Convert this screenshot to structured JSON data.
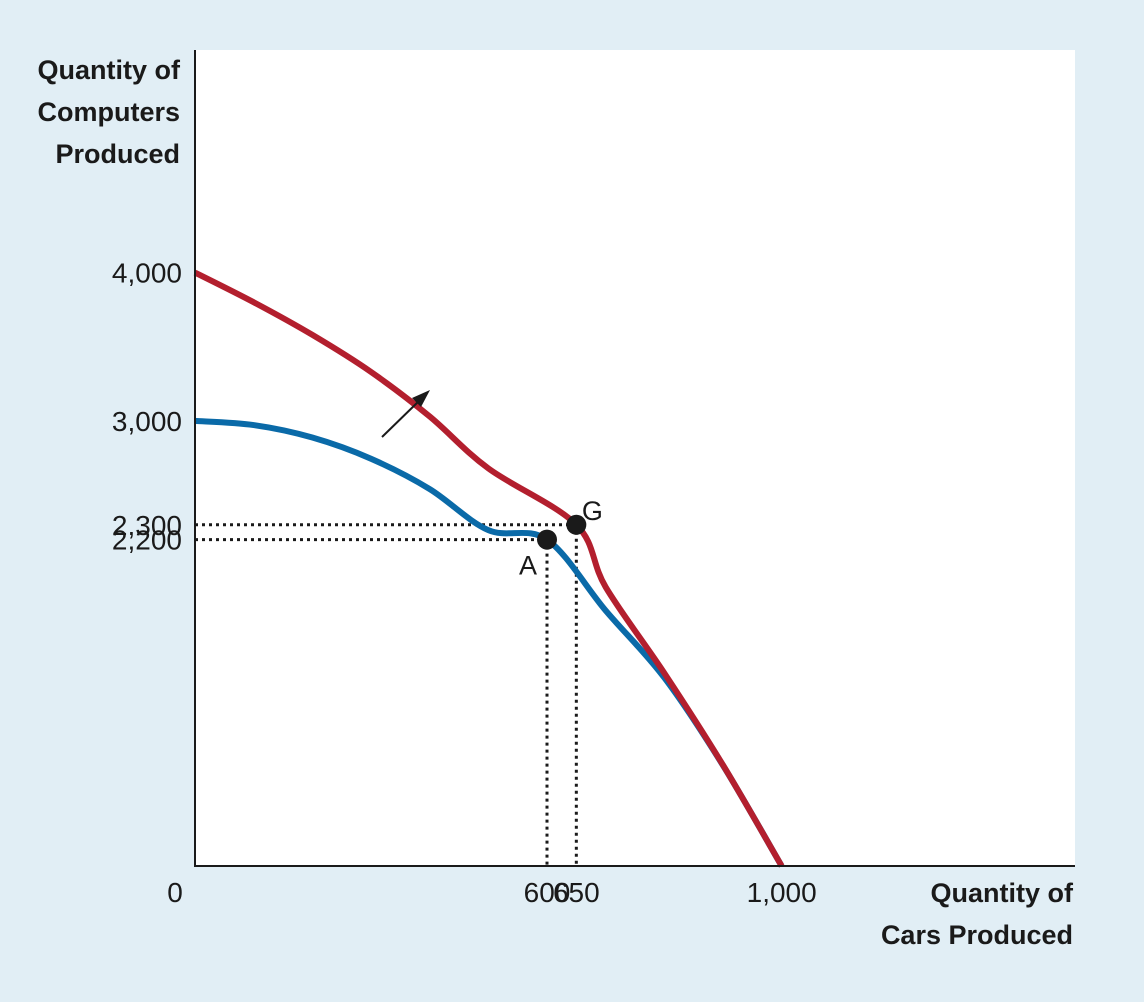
{
  "chart_data": {
    "type": "line",
    "title": "",
    "xlabel": [
      "Quantity of",
      "Cars Produced"
    ],
    "ylabel": [
      "Quantity of",
      "Computers",
      "Produced"
    ],
    "origin_label": "0",
    "xlim": [
      0,
      1500
    ],
    "ylim": [
      0,
      5500
    ],
    "x_ticks": [
      {
        "value": 600,
        "label": "600"
      },
      {
        "value": 650,
        "label": "650"
      },
      {
        "value": 1000,
        "label": "1,000"
      }
    ],
    "y_ticks": [
      {
        "value": 4000,
        "label": "4,000"
      },
      {
        "value": 3000,
        "label": "3,000"
      },
      {
        "value": 2300,
        "label": "2,300"
      },
      {
        "value": 2200,
        "label": "2,200"
      }
    ],
    "grid": false,
    "series": [
      {
        "color": "#0a6aa8",
        "points": [
          [
            0,
            3000
          ],
          [
            100,
            2972
          ],
          [
            200,
            2888
          ],
          [
            300,
            2745
          ],
          [
            400,
            2541
          ],
          [
            500,
            2264
          ],
          [
            600,
            2200
          ],
          [
            700,
            1722
          ],
          [
            800,
            1269
          ],
          [
            900,
            678
          ],
          [
            1000,
            0
          ]
        ]
      },
      {
        "color": "#b31f2e",
        "points": [
          [
            0,
            4000
          ],
          [
            100,
            3800
          ],
          [
            200,
            3580
          ],
          [
            300,
            3330
          ],
          [
            400,
            3030
          ],
          [
            500,
            2680
          ],
          [
            650,
            2300
          ],
          [
            700,
            1880
          ],
          [
            800,
            1300
          ],
          [
            900,
            680
          ],
          [
            1000,
            0
          ]
        ]
      }
    ],
    "points": [
      {
        "label": "A",
        "x": 600,
        "y": 2200
      },
      {
        "label": "G",
        "x": 650,
        "y": 2300
      }
    ],
    "colors": {
      "background": "#e1eef5",
      "plot_area": "#ffffff",
      "axis": "#1a1a1a"
    }
  }
}
